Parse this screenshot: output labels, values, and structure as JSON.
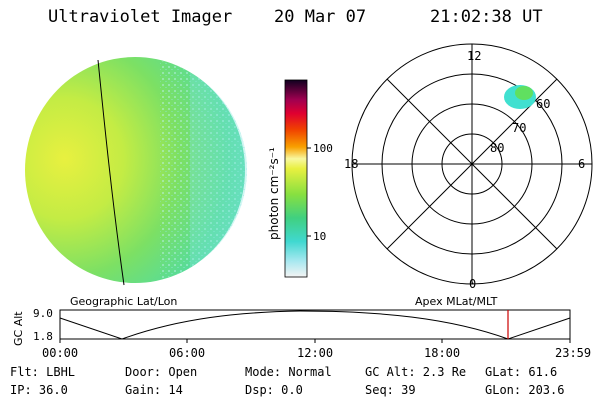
{
  "header": {
    "title": "Ultraviolet Imager",
    "date": "20 Mar 07",
    "time": "21:02:38 UT"
  },
  "colorbar": {
    "unit_label": "photon cm⁻²s⁻¹",
    "ticks": [
      "100",
      "10"
    ]
  },
  "polar_plot": {
    "mlt_labels": [
      "12",
      "18",
      "6",
      "0"
    ],
    "lat_labels": [
      "60",
      "70",
      "80"
    ]
  },
  "orbit_panel": {
    "left_label": "Geographic Lat/Lon",
    "right_label": "Apex MLat/MLT",
    "ylabel": "GC Alt",
    "ymax": "9.0",
    "ymin": "1.8",
    "time_ticks": [
      "00:00",
      "06:00",
      "12:00",
      "18:00",
      "23:59"
    ],
    "marker_color": "#cc0000"
  },
  "info": {
    "flt": "Flt: LBHL",
    "ip": "IP: 36.0",
    "door": "Door: Open",
    "gain": "Gain: 14",
    "mode": "Mode: Normal",
    "dsp": "Dsp:     0.0",
    "gc_alt": "GC Alt: 2.3 Re",
    "seq": "Seq: 39",
    "glat": "GLat:  61.6",
    "glon": "GLon: 203.6"
  }
}
